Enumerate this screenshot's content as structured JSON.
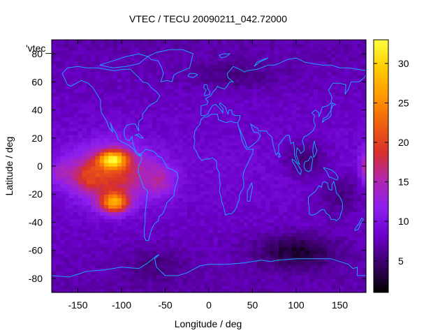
{
  "chart_data": {
    "type": "heatmap",
    "title": "VTEC / TECU 20090211_042.72000",
    "xlabel": "Longitude / deg",
    "ylabel": "Latitude / deg",
    "key_label": "'vtec_",
    "xlim": [
      -180,
      180
    ],
    "ylim": [
      -90,
      90
    ],
    "x_ticks": [
      -150,
      -100,
      -50,
      0,
      50,
      100,
      150
    ],
    "y_ticks": [
      -80,
      -60,
      -40,
      -20,
      0,
      20,
      40,
      60,
      80
    ],
    "colorbar": {
      "range": [
        1,
        33
      ],
      "ticks": [
        5,
        10,
        15,
        20,
        25,
        30
      ],
      "palette": [
        "#000000",
        "#3a0066",
        "#6a00c8",
        "#8c1ef0",
        "#b026b0",
        "#d8302a",
        "#f06010",
        "#ff9800",
        "#ffcc00",
        "#ffff40"
      ]
    },
    "background_value": 9,
    "features": [
      {
        "lon": -110,
        "lat": -5,
        "slon": 40,
        "slat": 20,
        "amp": 11
      },
      {
        "lon": -110,
        "lat": 5,
        "slon": 16,
        "slat": 6,
        "amp": 16
      },
      {
        "lon": -108,
        "lat": -26,
        "slon": 16,
        "slat": 7,
        "amp": 16
      },
      {
        "lon": -140,
        "lat": -8,
        "slon": 16,
        "slat": 12,
        "amp": 5
      },
      {
        "lon": -55,
        "lat": -10,
        "slon": 18,
        "slat": 12,
        "amp": 5
      },
      {
        "lon": -170,
        "lat": -5,
        "slon": 18,
        "slat": 10,
        "amp": 4
      },
      {
        "lon": 100,
        "lat": -60,
        "slon": 45,
        "slat": 12,
        "amp": -5
      },
      {
        "lon": 110,
        "lat": 5,
        "slon": 25,
        "slat": 12,
        "amp": -4
      },
      {
        "lon": 150,
        "lat": -20,
        "slon": 25,
        "slat": 15,
        "amp": -3
      },
      {
        "lon": 30,
        "lat": 65,
        "slon": 50,
        "slat": 10,
        "amp": -2
      },
      {
        "lon": 178,
        "lat": 0,
        "slon": 6,
        "slat": 12,
        "amp": 6
      },
      {
        "lon": -60,
        "lat": -70,
        "slon": 40,
        "slat": 12,
        "amp": -2
      }
    ]
  }
}
